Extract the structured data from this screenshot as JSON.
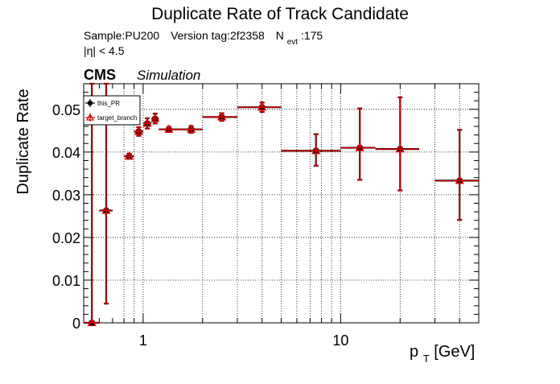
{
  "chart_data": {
    "type": "scatter",
    "title": "Duplicate Rate of Track Candidate",
    "info": {
      "sample_label": "Sample:PU200",
      "version_label": "Version tag:2f2358",
      "nevt_prefix": "N",
      "nevt_sub": "evt",
      "nevt_value": ":175",
      "eta_cut": "|η| < 4.5"
    },
    "cms_label": "CMS",
    "simulation_label": "Simulation",
    "ylabel": "Duplicate Rate",
    "xlabel": {
      "p": "p",
      "sub": "T",
      "unit": " [GeV]"
    },
    "x_scale": "log",
    "xlim": [
      0.5,
      50
    ],
    "ylim": [
      0,
      0.056
    ],
    "grid": true,
    "legend_position": "top-left",
    "x_ticks": [
      1,
      10
    ],
    "x_tick_labels": [
      "1",
      "10"
    ],
    "y_ticks": [
      0,
      0.01,
      0.02,
      0.03,
      0.04,
      0.05
    ],
    "y_tick_labels": [
      "0",
      "0.01",
      "0.02",
      "0.03",
      "0.04",
      "0.05"
    ],
    "series": [
      {
        "name": "this_PR",
        "marker": "circle",
        "color": "#000000",
        "points": [
          {
            "x": 0.55,
            "xlo": 0.5,
            "xhi": 0.6,
            "y": 0.0,
            "ylo": 0.0,
            "yhi": 0.056
          },
          {
            "x": 0.65,
            "xlo": 0.6,
            "xhi": 0.7,
            "y": 0.0263,
            "ylo": 0.0045,
            "yhi": 0.056
          },
          {
            "x": 0.85,
            "xlo": 0.8,
            "xhi": 0.9,
            "y": 0.039,
            "ylo": 0.0384,
            "yhi": 0.0396
          },
          {
            "x": 0.95,
            "xlo": 0.9,
            "xhi": 1.0,
            "y": 0.0448,
            "ylo": 0.0438,
            "yhi": 0.0458
          },
          {
            "x": 1.05,
            "xlo": 1.0,
            "xhi": 1.1,
            "y": 0.0467,
            "ylo": 0.0455,
            "yhi": 0.0479
          },
          {
            "x": 1.15,
            "xlo": 1.1,
            "xhi": 1.2,
            "y": 0.0478,
            "ylo": 0.0467,
            "yhi": 0.049
          },
          {
            "x": 1.35,
            "xlo": 1.2,
            "xhi": 1.5,
            "y": 0.0453,
            "ylo": 0.0447,
            "yhi": 0.0459
          },
          {
            "x": 1.75,
            "xlo": 1.5,
            "xhi": 2.0,
            "y": 0.0453,
            "ylo": 0.0445,
            "yhi": 0.0461
          },
          {
            "x": 2.5,
            "xlo": 2.0,
            "xhi": 3.0,
            "y": 0.0482,
            "ylo": 0.0473,
            "yhi": 0.0491
          },
          {
            "x": 4.0,
            "xlo": 3.0,
            "xhi": 5.0,
            "y": 0.0505,
            "ylo": 0.0494,
            "yhi": 0.0516
          },
          {
            "x": 7.5,
            "xlo": 5.0,
            "xhi": 10.0,
            "y": 0.0403,
            "ylo": 0.0368,
            "yhi": 0.0442
          },
          {
            "x": 12.5,
            "xlo": 10.0,
            "xhi": 15.0,
            "y": 0.041,
            "ylo": 0.0335,
            "yhi": 0.0502
          },
          {
            "x": 20.0,
            "xlo": 15.0,
            "xhi": 25.0,
            "y": 0.0407,
            "ylo": 0.031,
            "yhi": 0.0528
          },
          {
            "x": 40.0,
            "xlo": 30.0,
            "xhi": 50.0,
            "y": 0.0333,
            "ylo": 0.0241,
            "yhi": 0.0452
          }
        ]
      },
      {
        "name": "target_branch",
        "marker": "triangle",
        "color": "#dd0000",
        "points": [
          {
            "x": 0.55,
            "xlo": 0.5,
            "xhi": 0.6,
            "y": 0.0,
            "ylo": 0.0,
            "yhi": 0.056
          },
          {
            "x": 0.65,
            "xlo": 0.6,
            "xhi": 0.7,
            "y": 0.0263,
            "ylo": 0.0045,
            "yhi": 0.056
          },
          {
            "x": 0.85,
            "xlo": 0.8,
            "xhi": 0.9,
            "y": 0.039,
            "ylo": 0.0384,
            "yhi": 0.0396
          },
          {
            "x": 0.95,
            "xlo": 0.9,
            "xhi": 1.0,
            "y": 0.0448,
            "ylo": 0.0438,
            "yhi": 0.0458
          },
          {
            "x": 1.05,
            "xlo": 1.0,
            "xhi": 1.1,
            "y": 0.0467,
            "ylo": 0.0455,
            "yhi": 0.0479
          },
          {
            "x": 1.15,
            "xlo": 1.1,
            "xhi": 1.2,
            "y": 0.0478,
            "ylo": 0.0467,
            "yhi": 0.049
          },
          {
            "x": 1.35,
            "xlo": 1.2,
            "xhi": 1.5,
            "y": 0.0453,
            "ylo": 0.0447,
            "yhi": 0.0459
          },
          {
            "x": 1.75,
            "xlo": 1.5,
            "xhi": 2.0,
            "y": 0.0453,
            "ylo": 0.0445,
            "yhi": 0.0461
          },
          {
            "x": 2.5,
            "xlo": 2.0,
            "xhi": 3.0,
            "y": 0.0482,
            "ylo": 0.0473,
            "yhi": 0.0491
          },
          {
            "x": 4.0,
            "xlo": 3.0,
            "xhi": 5.0,
            "y": 0.0505,
            "ylo": 0.0494,
            "yhi": 0.0516
          },
          {
            "x": 7.5,
            "xlo": 5.0,
            "xhi": 10.0,
            "y": 0.0403,
            "ylo": 0.0368,
            "yhi": 0.0442
          },
          {
            "x": 12.5,
            "xlo": 10.0,
            "xhi": 15.0,
            "y": 0.041,
            "ylo": 0.0335,
            "yhi": 0.0502
          },
          {
            "x": 20.0,
            "xlo": 15.0,
            "xhi": 25.0,
            "y": 0.0407,
            "ylo": 0.031,
            "yhi": 0.0528
          },
          {
            "x": 40.0,
            "xlo": 30.0,
            "xhi": 50.0,
            "y": 0.0333,
            "ylo": 0.0241,
            "yhi": 0.0452
          }
        ]
      }
    ]
  }
}
